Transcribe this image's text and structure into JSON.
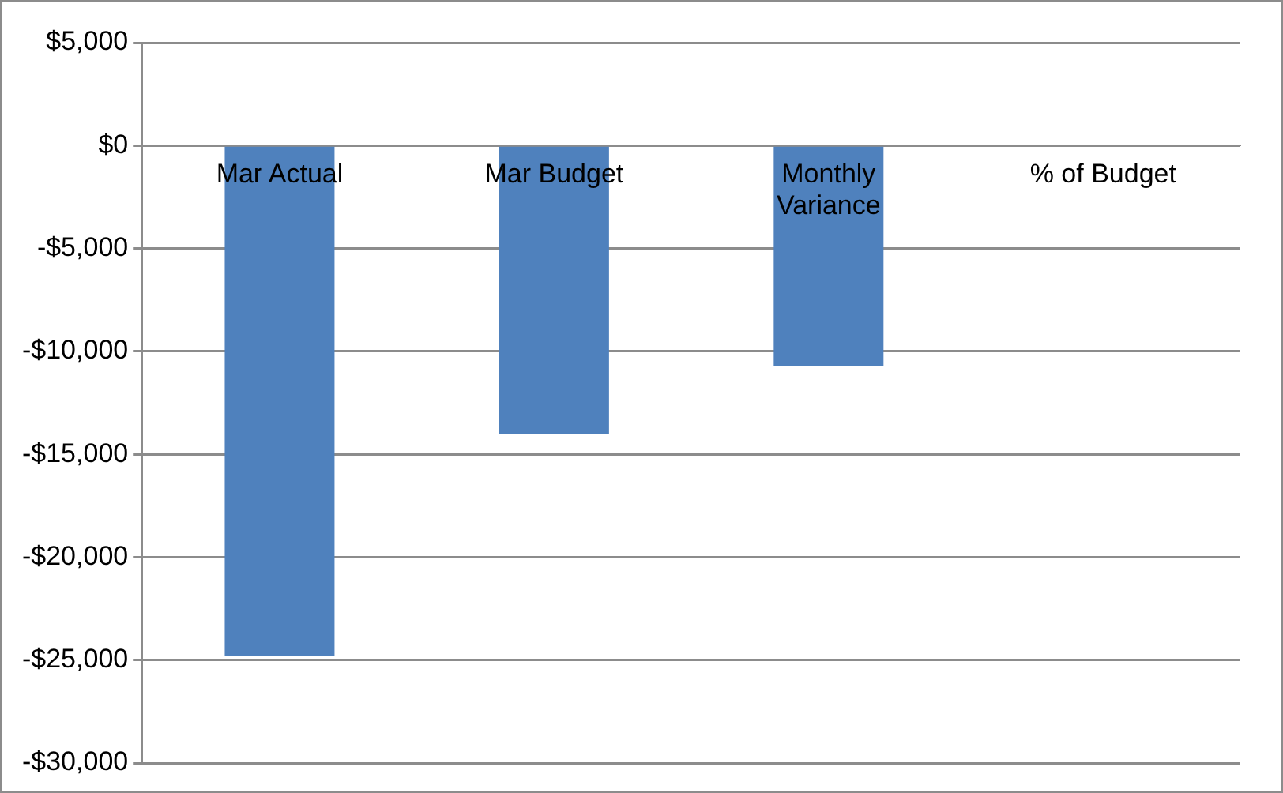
{
  "chart_data": {
    "type": "bar",
    "categories": [
      "Mar Actual",
      "Mar Budget",
      "Monthly Variance",
      "% of Budget"
    ],
    "values": [
      -24800,
      -14000,
      -10700,
      null
    ],
    "color": "#4f81bd",
    "ylim": [
      -30000,
      5000
    ],
    "yticks": [
      {
        "value": 5000,
        "label": "$5,000"
      },
      {
        "value": 0,
        "label": "$0"
      },
      {
        "value": -5000,
        "label": "-$5,000"
      },
      {
        "value": -10000,
        "label": "-$10,000"
      },
      {
        "value": -15000,
        "label": "-$15,000"
      },
      {
        "value": -20000,
        "label": "-$20,000"
      },
      {
        "value": -25000,
        "label": "-$25,000"
      },
      {
        "value": -30000,
        "label": "-$30,000"
      }
    ],
    "grid": "y",
    "legend": false
  }
}
